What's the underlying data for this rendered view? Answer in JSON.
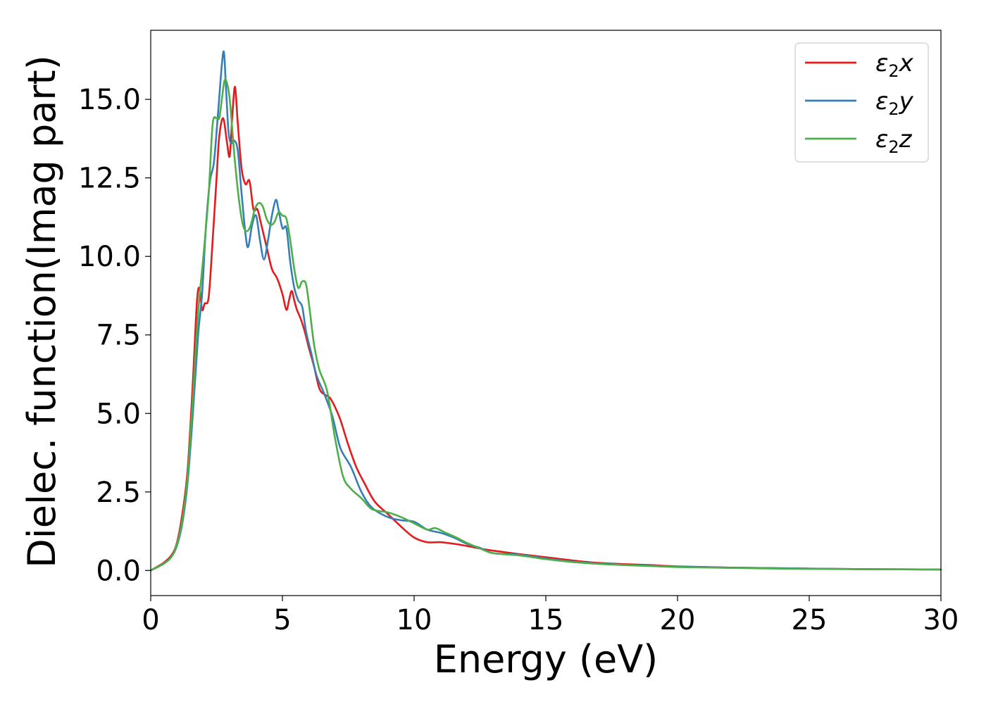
{
  "chart_data": {
    "type": "line",
    "xlabel": "Energy (eV)",
    "ylabel": "Dielec. function(Imag part)",
    "xlim": [
      0,
      30
    ],
    "ylim": [
      -0.8,
      17.2
    ],
    "xticks": [
      0,
      5,
      10,
      15,
      20,
      25,
      30
    ],
    "xtick_labels": [
      "0",
      "5",
      "10",
      "15",
      "20",
      "25",
      "30"
    ],
    "yticks": [
      0.0,
      2.5,
      5.0,
      7.5,
      10.0,
      12.5,
      15.0
    ],
    "ytick_labels": [
      "0.0",
      "2.5",
      "5.0",
      "7.5",
      "10.0",
      "12.5",
      "15.0"
    ],
    "grid": false,
    "legend_position": "top-right",
    "series": [
      {
        "name": "ε₂x",
        "legend_base": "ε",
        "legend_sub": "2",
        "legend_suffix": "x",
        "color": "#e41a1c",
        "x": [
          0,
          0.5,
          0.8,
          1.0,
          1.2,
          1.4,
          1.6,
          1.75,
          1.85,
          1.95,
          2.05,
          2.2,
          2.35,
          2.5,
          2.6,
          2.75,
          2.9,
          3.0,
          3.1,
          3.2,
          3.3,
          3.45,
          3.6,
          3.75,
          3.9,
          4.05,
          4.2,
          4.4,
          4.6,
          4.8,
          5.0,
          5.15,
          5.25,
          5.35,
          5.45,
          5.55,
          5.7,
          5.85,
          6.0,
          6.2,
          6.4,
          6.6,
          6.8,
          7.0,
          7.2,
          7.5,
          7.8,
          8.1,
          8.5,
          9.0,
          9.5,
          10.0,
          10.5,
          11.0,
          11.5,
          12.0,
          12.5,
          13.0,
          14.0,
          15.0,
          16.0,
          17.0,
          18.0,
          19.0,
          20.0,
          22.0,
          25.0,
          27.5,
          30.0
        ],
        "values": [
          0,
          0.25,
          0.5,
          0.9,
          1.8,
          3.2,
          6.0,
          8.5,
          9.0,
          8.3,
          8.5,
          8.7,
          10.5,
          12.5,
          13.8,
          14.4,
          13.6,
          13.2,
          14.5,
          15.4,
          14.3,
          12.8,
          12.3,
          12.4,
          11.5,
          11.5,
          11.0,
          10.3,
          9.6,
          9.3,
          8.8,
          8.3,
          8.6,
          8.9,
          8.6,
          8.3,
          8.0,
          7.6,
          7.1,
          6.5,
          5.8,
          5.6,
          5.5,
          5.2,
          4.8,
          4.0,
          3.3,
          2.8,
          2.2,
          1.8,
          1.4,
          1.05,
          0.9,
          0.9,
          0.85,
          0.78,
          0.7,
          0.63,
          0.52,
          0.42,
          0.32,
          0.24,
          0.2,
          0.17,
          0.13,
          0.09,
          0.06,
          0.04,
          0.03
        ]
      },
      {
        "name": "ε₂y",
        "legend_base": "ε",
        "legend_sub": "2",
        "legend_suffix": "y",
        "color": "#377eb8",
        "x": [
          0,
          0.5,
          0.8,
          1.0,
          1.2,
          1.4,
          1.6,
          1.8,
          1.95,
          2.1,
          2.25,
          2.4,
          2.55,
          2.7,
          2.78,
          2.85,
          2.95,
          3.05,
          3.15,
          3.3,
          3.45,
          3.6,
          3.7,
          3.85,
          4.0,
          4.15,
          4.3,
          4.45,
          4.6,
          4.75,
          4.85,
          5.0,
          5.15,
          5.3,
          5.45,
          5.6,
          5.75,
          5.9,
          6.1,
          6.3,
          6.6,
          6.9,
          7.2,
          7.6,
          8.0,
          8.4,
          9.0,
          9.5,
          10.0,
          10.5,
          11.0,
          11.5,
          12.0,
          12.5,
          13.0,
          14.0,
          15.0,
          16.0,
          17.0,
          18.0,
          19.0,
          20.0,
          22.0,
          25.0,
          27.5,
          30.0
        ],
        "values": [
          0,
          0.22,
          0.45,
          0.8,
          1.5,
          2.8,
          5.0,
          7.5,
          8.8,
          11.0,
          12.4,
          13.0,
          14.5,
          16.1,
          16.5,
          15.5,
          14.0,
          13.6,
          13.7,
          13.4,
          12.0,
          10.7,
          10.3,
          11.0,
          11.3,
          10.5,
          9.9,
          10.5,
          11.3,
          11.8,
          11.5,
          10.9,
          10.9,
          9.8,
          9.0,
          8.6,
          8.4,
          7.6,
          6.9,
          6.2,
          5.6,
          4.9,
          3.9,
          3.3,
          2.5,
          2.0,
          1.7,
          1.6,
          1.55,
          1.3,
          1.2,
          1.05,
          0.85,
          0.72,
          0.55,
          0.5,
          0.38,
          0.28,
          0.22,
          0.18,
          0.15,
          0.12,
          0.09,
          0.06,
          0.04,
          0.03
        ]
      },
      {
        "name": "ε₂z",
        "legend_base": "ε",
        "legend_sub": "2",
        "legend_suffix": "z",
        "color": "#4daf4a",
        "x": [
          0,
          0.5,
          0.8,
          1.0,
          1.2,
          1.4,
          1.6,
          1.8,
          2.0,
          2.2,
          2.35,
          2.5,
          2.6,
          2.7,
          2.8,
          2.9,
          3.0,
          3.1,
          3.2,
          3.35,
          3.5,
          3.65,
          3.8,
          3.95,
          4.1,
          4.25,
          4.4,
          4.55,
          4.7,
          4.85,
          5.0,
          5.15,
          5.3,
          5.45,
          5.6,
          5.75,
          5.9,
          6.05,
          6.2,
          6.4,
          6.7,
          7.0,
          7.3,
          7.6,
          8.0,
          8.4,
          9.0,
          9.5,
          10.0,
          10.5,
          10.8,
          11.2,
          11.6,
          12.0,
          12.5,
          13.0,
          14.0,
          15.0,
          16.0,
          17.0,
          18.0,
          19.0,
          20.0,
          22.0,
          25.0,
          27.5,
          30.0
        ],
        "values": [
          0,
          0.22,
          0.45,
          0.85,
          1.6,
          3.0,
          5.5,
          8.2,
          10.0,
          12.0,
          14.2,
          14.4,
          14.4,
          15.0,
          15.6,
          15.5,
          15.0,
          14.0,
          13.0,
          11.8,
          11.0,
          10.8,
          11.0,
          11.5,
          11.7,
          11.6,
          11.2,
          11.0,
          11.1,
          11.4,
          11.3,
          11.2,
          10.5,
          9.6,
          9.0,
          9.2,
          9.1,
          8.2,
          7.2,
          6.4,
          5.7,
          4.2,
          3.0,
          2.6,
          2.3,
          1.95,
          1.85,
          1.7,
          1.5,
          1.3,
          1.35,
          1.2,
          1.05,
          0.88,
          0.7,
          0.55,
          0.48,
          0.36,
          0.27,
          0.21,
          0.17,
          0.14,
          0.11,
          0.08,
          0.05,
          0.04,
          0.03
        ]
      }
    ]
  }
}
